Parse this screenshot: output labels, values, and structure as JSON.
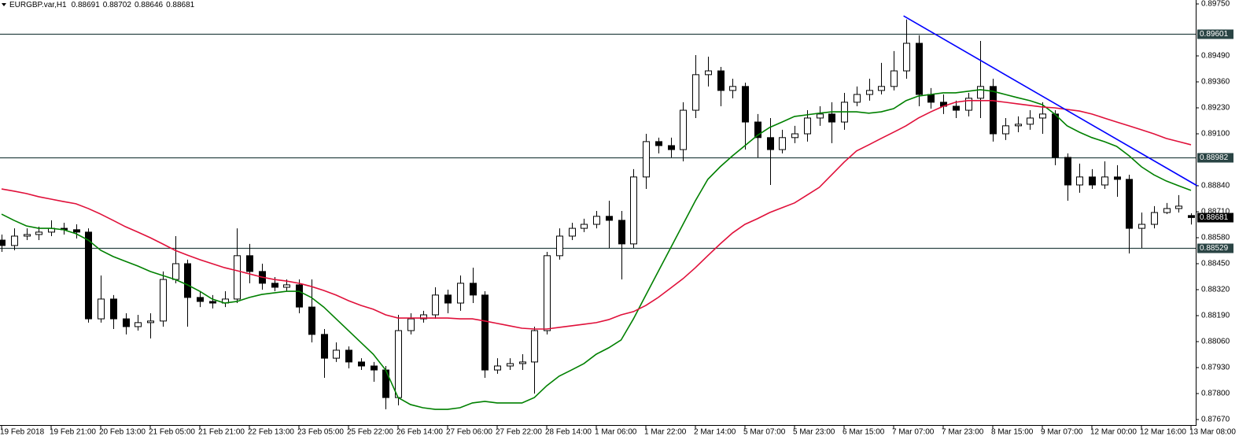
{
  "chart_data": {
    "type": "candlestick",
    "title": "EURGBP.var,H1",
    "bull_color": "#ffffff",
    "bear_color": "#000000",
    "grid": false,
    "ylim": [
      0.8767,
      0.8975
    ],
    "yticks": [
      {
        "value": 0.8975,
        "label": "0.89750"
      },
      {
        "value": 0.8949,
        "label": "0.89490"
      },
      {
        "value": 0.8936,
        "label": "0.89360"
      },
      {
        "value": 0.8923,
        "label": "0.89230"
      },
      {
        "value": 0.891,
        "label": "0.89100"
      },
      {
        "value": 0.8884,
        "label": "0.88840"
      },
      {
        "value": 0.8871,
        "label": "0.88710"
      },
      {
        "value": 0.8858,
        "label": "0.88580"
      },
      {
        "value": 0.8845,
        "label": "0.88450"
      },
      {
        "value": 0.8832,
        "label": "0.88320"
      },
      {
        "value": 0.8819,
        "label": "0.88190"
      },
      {
        "value": 0.8806,
        "label": "0.88060"
      },
      {
        "value": 0.8793,
        "label": "0.87930"
      },
      {
        "value": 0.878,
        "label": "0.87800"
      },
      {
        "value": 0.8767,
        "label": "0.87670"
      }
    ],
    "categories": [
      "19 Feb 2018",
      null,
      null,
      null,
      "19 Feb 21:00",
      null,
      null,
      null,
      "20 Feb 13:00",
      null,
      null,
      null,
      "21 Feb 05:00",
      null,
      null,
      null,
      "21 Feb 21:00",
      null,
      null,
      null,
      "22 Feb 13:00",
      null,
      null,
      null,
      "23 Feb 05:00",
      null,
      null,
      null,
      "25 Feb 22:00",
      null,
      null,
      null,
      "26 Feb 14:00",
      null,
      null,
      null,
      "27 Feb 06:00",
      null,
      null,
      null,
      "27 Feb 22:00",
      null,
      null,
      null,
      "28 Feb 14:00",
      null,
      null,
      null,
      "1 Mar 06:00",
      null,
      null,
      null,
      "1 Mar 22:00",
      null,
      null,
      null,
      "2 Mar 14:00",
      null,
      null,
      null,
      "5 Mar 07:00",
      null,
      null,
      null,
      "5 Mar 23:00",
      null,
      null,
      null,
      "6 Mar 15:00",
      null,
      null,
      null,
      "7 Mar 07:00",
      null,
      null,
      null,
      "7 Mar 23:00",
      null,
      null,
      null,
      "8 Mar 15:00",
      null,
      null,
      null,
      "9 Mar 07:00",
      null,
      null,
      null,
      "12 Mar 00:00",
      null,
      null,
      null,
      "12 Mar 16:00",
      null,
      null,
      null,
      "13 Mar 08:00"
    ],
    "candles": [
      [
        0.88568,
        0.88596,
        0.88509,
        0.88541
      ],
      [
        0.88541,
        0.88627,
        0.88517,
        0.88588
      ],
      [
        0.88588,
        0.88627,
        0.88568,
        0.88596
      ],
      [
        0.88596,
        0.88635,
        0.88568,
        0.88608
      ],
      [
        0.88608,
        0.88667,
        0.88588,
        0.88627
      ],
      [
        0.88627,
        0.88655,
        0.88596,
        0.8862
      ],
      [
        0.8862,
        0.88647,
        0.88576,
        0.88608
      ],
      [
        0.88608,
        0.88627,
        0.88155,
        0.88174
      ],
      [
        0.88174,
        0.88391,
        0.88155,
        0.88273
      ],
      [
        0.88273,
        0.88293,
        0.88123,
        0.88174
      ],
      [
        0.88174,
        0.88202,
        0.88096,
        0.88135
      ],
      [
        0.88135,
        0.88194,
        0.88115,
        0.88155
      ],
      [
        0.88155,
        0.88202,
        0.88076,
        0.88163
      ],
      [
        0.88163,
        0.88411,
        0.88135,
        0.88371
      ],
      [
        0.88371,
        0.88588,
        0.88352,
        0.8845
      ],
      [
        0.8845,
        0.8847,
        0.88135,
        0.88281
      ],
      [
        0.88281,
        0.88312,
        0.88233,
        0.88261
      ],
      [
        0.88261,
        0.88293,
        0.88226,
        0.88253
      ],
      [
        0.88253,
        0.88312,
        0.88233,
        0.88273
      ],
      [
        0.88273,
        0.88627,
        0.88253,
        0.8849
      ],
      [
        0.8849,
        0.88549,
        0.88352,
        0.88411
      ],
      [
        0.88411,
        0.8845,
        0.8832,
        0.88352
      ],
      [
        0.88352,
        0.88383,
        0.88312,
        0.88332
      ],
      [
        0.88332,
        0.88371,
        0.88312,
        0.88344
      ],
      [
        0.88344,
        0.88371,
        0.88202,
        0.88233
      ],
      [
        0.88233,
        0.88371,
        0.88056,
        0.88096
      ],
      [
        0.88096,
        0.88123,
        0.87879,
        0.87977
      ],
      [
        0.87977,
        0.88056,
        0.87958,
        0.88017
      ],
      [
        0.88017,
        0.88036,
        0.87926,
        0.87958
      ],
      [
        0.87958,
        0.87977,
        0.87918,
        0.87938
      ],
      [
        0.87938,
        0.87958,
        0.87859,
        0.87918
      ],
      [
        0.87918,
        0.87938,
        0.87721,
        0.8778
      ],
      [
        0.8778,
        0.88194,
        0.87741,
        0.88115
      ],
      [
        0.88115,
        0.88202,
        0.88096,
        0.88174
      ],
      [
        0.88174,
        0.88214,
        0.88155,
        0.88194
      ],
      [
        0.88194,
        0.88332,
        0.88174,
        0.88293
      ],
      [
        0.88293,
        0.8832,
        0.88202,
        0.88253
      ],
      [
        0.88253,
        0.88391,
        0.88214,
        0.88352
      ],
      [
        0.88352,
        0.8843,
        0.88253,
        0.88293
      ],
      [
        0.88293,
        0.88312,
        0.87879,
        0.87918
      ],
      [
        0.87918,
        0.87977,
        0.87899,
        0.87938
      ],
      [
        0.87938,
        0.87977,
        0.87918,
        0.8795
      ],
      [
        0.8795,
        0.87997,
        0.87918,
        0.87958
      ],
      [
        0.87958,
        0.88135,
        0.878,
        0.88115
      ],
      [
        0.88115,
        0.88509,
        0.88096,
        0.8849
      ],
      [
        0.8849,
        0.88627,
        0.8847,
        0.88588
      ],
      [
        0.88588,
        0.88655,
        0.88568,
        0.88627
      ],
      [
        0.88627,
        0.88675,
        0.88608,
        0.88647
      ],
      [
        0.88647,
        0.88714,
        0.88627,
        0.88687
      ],
      [
        0.88687,
        0.88765,
        0.88529,
        0.88667
      ],
      [
        0.88667,
        0.88714,
        0.88371,
        0.88549
      ],
      [
        0.88549,
        0.88923,
        0.88529,
        0.88884
      ],
      [
        0.88884,
        0.891,
        0.88824,
        0.89061
      ],
      [
        0.89061,
        0.89081,
        0.89002,
        0.89041
      ],
      [
        0.89041,
        0.89081,
        0.88982,
        0.89021
      ],
      [
        0.89021,
        0.89258,
        0.88962,
        0.89218
      ],
      [
        0.89218,
        0.89494,
        0.89179,
        0.89396
      ],
      [
        0.89396,
        0.89486,
        0.89337,
        0.89415
      ],
      [
        0.89415,
        0.89435,
        0.89238,
        0.89317
      ],
      [
        0.89317,
        0.89376,
        0.89278,
        0.89337
      ],
      [
        0.89337,
        0.89356,
        0.89021,
        0.89159
      ],
      [
        0.89159,
        0.89199,
        0.88982,
        0.89081
      ],
      [
        0.89081,
        0.89179,
        0.88844,
        0.89021
      ],
      [
        0.89021,
        0.8912,
        0.89002,
        0.89081
      ],
      [
        0.89081,
        0.8914,
        0.89053,
        0.891
      ],
      [
        0.891,
        0.89218,
        0.89061,
        0.89179
      ],
      [
        0.89179,
        0.89238,
        0.8914,
        0.89199
      ],
      [
        0.89199,
        0.89258,
        0.89053,
        0.89159
      ],
      [
        0.89159,
        0.89305,
        0.8912,
        0.89258
      ],
      [
        0.89258,
        0.89337,
        0.89238,
        0.89297
      ],
      [
        0.89297,
        0.89376,
        0.89266,
        0.89317
      ],
      [
        0.89317,
        0.89455,
        0.89297,
        0.89337
      ],
      [
        0.89337,
        0.89514,
        0.89317,
        0.89415
      ],
      [
        0.89415,
        0.89672,
        0.89376,
        0.89553
      ],
      [
        0.89553,
        0.89593,
        0.89238,
        0.89297
      ],
      [
        0.89297,
        0.89329,
        0.89226,
        0.89258
      ],
      [
        0.89258,
        0.89297,
        0.89199,
        0.89238
      ],
      [
        0.89238,
        0.89266,
        0.89179,
        0.89218
      ],
      [
        0.89218,
        0.89305,
        0.89187,
        0.89278
      ],
      [
        0.89278,
        0.89565,
        0.89179,
        0.89337
      ],
      [
        0.89337,
        0.89376,
        0.89061,
        0.891
      ],
      [
        0.891,
        0.89179,
        0.89069,
        0.8914
      ],
      [
        0.8914,
        0.89187,
        0.89108,
        0.89148
      ],
      [
        0.89148,
        0.89218,
        0.8912,
        0.89179
      ],
      [
        0.89179,
        0.89258,
        0.891,
        0.89199
      ],
      [
        0.89199,
        0.89218,
        0.88943,
        0.88982
      ],
      [
        0.88982,
        0.89002,
        0.88765,
        0.88844
      ],
      [
        0.88844,
        0.88951,
        0.88805,
        0.88884
      ],
      [
        0.88884,
        0.88923,
        0.88824,
        0.88844
      ],
      [
        0.88844,
        0.88962,
        0.88824,
        0.88884
      ],
      [
        0.88884,
        0.88943,
        0.88785,
        0.88872
      ],
      [
        0.88872,
        0.88895,
        0.88501,
        0.88627
      ],
      [
        0.88627,
        0.88706,
        0.88529,
        0.88647
      ],
      [
        0.88647,
        0.88738,
        0.88627,
        0.88706
      ],
      [
        0.88706,
        0.88754,
        0.88698,
        0.88726
      ],
      [
        0.88726,
        0.88793,
        0.88706,
        0.88738
      ],
      [
        0.88691,
        0.88702,
        0.88646,
        0.88681
      ]
    ],
    "series": [
      {
        "color": "#008000",
        "values": [
          0.88698,
          0.88667,
          0.88639,
          0.88627,
          0.88627,
          0.8862,
          0.886,
          0.88568,
          0.88517,
          0.88486,
          0.88462,
          0.88438,
          0.88411,
          0.88391,
          0.88371,
          0.88344,
          0.88312,
          0.88273,
          0.88253,
          0.88261,
          0.88281,
          0.88296,
          0.88304,
          0.88312,
          0.88312,
          0.88281,
          0.88233,
          0.88174,
          0.88115,
          0.88056,
          0.87997,
          0.87918,
          0.8778,
          0.87745,
          0.87729,
          0.87721,
          0.87721,
          0.87729,
          0.87753,
          0.87761,
          0.87753,
          0.87753,
          0.87753,
          0.8778,
          0.87839,
          0.87887,
          0.87918,
          0.8795,
          0.87997,
          0.88029,
          0.88068,
          0.88174,
          0.88293,
          0.88411,
          0.88529,
          0.88647,
          0.88765,
          0.88872,
          0.88935,
          0.8899,
          0.89041,
          0.89092,
          0.89132,
          0.89159,
          0.89187,
          0.89195,
          0.89203,
          0.8921,
          0.8921,
          0.8921,
          0.89203,
          0.8921,
          0.89226,
          0.89266,
          0.89289,
          0.89297,
          0.89305,
          0.89305,
          0.89313,
          0.89321,
          0.89313,
          0.89297,
          0.89281,
          0.89266,
          0.89246,
          0.89199,
          0.8914,
          0.89108,
          0.89081,
          0.89061,
          0.89037,
          0.8899,
          0.88935,
          0.88895,
          0.88864,
          0.8884,
          0.88817
        ]
      },
      {
        "color": "#e0103a",
        "values": [
          0.88824,
          0.88813,
          0.88801,
          0.88785,
          0.88773,
          0.88761,
          0.8875,
          0.88726,
          0.88698,
          0.88667,
          0.88635,
          0.88608,
          0.8858,
          0.88549,
          0.88517,
          0.88493,
          0.8847,
          0.8845,
          0.8843,
          0.88415,
          0.88399,
          0.88383,
          0.88371,
          0.88363,
          0.88352,
          0.88336,
          0.88316,
          0.88293,
          0.88265,
          0.88241,
          0.88222,
          0.88194,
          0.88178,
          0.88178,
          0.88178,
          0.88178,
          0.88178,
          0.88174,
          0.88174,
          0.88163,
          0.88151,
          0.88139,
          0.88127,
          0.88123,
          0.88123,
          0.88131,
          0.88139,
          0.88147,
          0.88155,
          0.8817,
          0.88194,
          0.8821,
          0.88241,
          0.88281,
          0.88328,
          0.88375,
          0.8843,
          0.8849,
          0.88549,
          0.88604,
          0.88647,
          0.88675,
          0.88706,
          0.8873,
          0.88754,
          0.88793,
          0.88832,
          0.88895,
          0.88958,
          0.89014,
          0.89045,
          0.89077,
          0.89108,
          0.8914,
          0.89179,
          0.8921,
          0.89238,
          0.89258,
          0.89266,
          0.89266,
          0.89266,
          0.89258,
          0.8925,
          0.89242,
          0.89234,
          0.8923,
          0.89222,
          0.89214,
          0.89199,
          0.89179,
          0.89159,
          0.8914,
          0.8912,
          0.891,
          0.89077,
          0.89061,
          0.89045
        ]
      }
    ],
    "trendline": {
      "color": "#0000ff",
      "x": [
        72.8,
        96.5
      ],
      "y": [
        0.8969,
        0.8884
      ]
    },
    "levels": {
      "color": "#2a4444",
      "values": [
        0.89601,
        0.88982,
        0.88529
      ]
    }
  }
}
